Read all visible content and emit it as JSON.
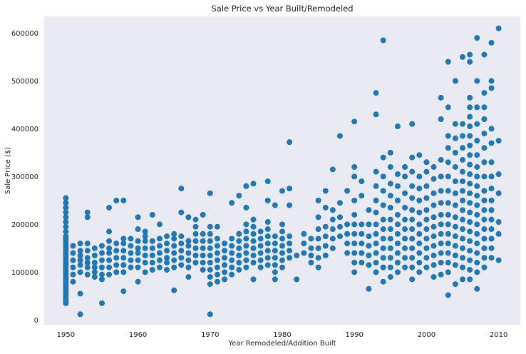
{
  "chart_data": {
    "type": "scatter",
    "title": "Sale Price vs Year Built/Remodeled",
    "xlabel": "Year Remodeled/Addition Built",
    "ylabel": "Sale Price ($)",
    "xlim": [
      1947,
      2013
    ],
    "ylim": [
      -10000,
      635000
    ],
    "xticks": [
      1950,
      1960,
      1970,
      1980,
      1990,
      2000,
      2010
    ],
    "xtick_labels": [
      "1950",
      "1960",
      "1970",
      "1980",
      "1990",
      "2000",
      "2010"
    ],
    "yticks": [
      0,
      100000,
      200000,
      300000,
      400000,
      500000,
      600000
    ],
    "ytick_labels": [
      "0",
      "100000",
      "200000",
      "300000",
      "400000",
      "500000",
      "600000"
    ],
    "grid": false,
    "marker_color": "#1f77b4",
    "background_color": "#eaeaf2",
    "columns": [
      [
        1950,
        [
          35000,
          40000,
          45000,
          50000,
          55000,
          60000,
          65000,
          70000,
          75000,
          80000,
          85000,
          90000,
          95000,
          100000,
          105000,
          110000,
          115000,
          120000,
          125000,
          130000,
          135000,
          140000,
          145000,
          150000,
          155000,
          160000,
          165000,
          170000,
          175000,
          185000,
          195000,
          205000,
          215000,
          225000,
          235000,
          245000,
          255000
        ]
      ],
      [
        1951,
        [
          80000,
          95000,
          110000,
          125000,
          140000,
          155000
        ]
      ],
      [
        1952,
        [
          12000,
          55000,
          100000,
          115000,
          125000,
          135000,
          145000,
          160000
        ]
      ],
      [
        1953,
        [
          95000,
          110000,
          120000,
          130000,
          145000,
          160000,
          215000,
          225000
        ]
      ],
      [
        1954,
        [
          90000,
          100000,
          110000,
          120000,
          135000,
          150000
        ]
      ],
      [
        1955,
        [
          35000,
          85000,
          95000,
          110000,
          125000,
          140000,
          155000
        ]
      ],
      [
        1956,
        [
          95000,
          110000,
          125000,
          140000,
          150000,
          165000,
          185000,
          235000
        ]
      ],
      [
        1957,
        [
          100000,
          115000,
          130000,
          145000,
          160000,
          250000
        ]
      ],
      [
        1958,
        [
          60000,
          100000,
          115000,
          130000,
          145000,
          160000,
          170000,
          250000
        ]
      ],
      [
        1959,
        [
          110000,
          125000,
          140000,
          155000,
          170000
        ]
      ],
      [
        1960,
        [
          80000,
          110000,
          125000,
          140000,
          150000,
          165000,
          190000,
          215000
        ]
      ],
      [
        1961,
        [
          100000,
          120000,
          135000,
          150000,
          165000,
          175000,
          185000
        ]
      ],
      [
        1962,
        [
          105000,
          120000,
          135000,
          150000,
          165000,
          220000
        ]
      ],
      [
        1963,
        [
          110000,
          125000,
          140000,
          155000,
          170000,
          200000
        ]
      ],
      [
        1964,
        [
          105000,
          120000,
          130000,
          145000,
          160000,
          175000
        ]
      ],
      [
        1965,
        [
          62000,
          110000,
          125000,
          140000,
          155000,
          170000,
          180000
        ]
      ],
      [
        1966,
        [
          115000,
          130000,
          145000,
          160000,
          175000,
          225000,
          275000
        ]
      ],
      [
        1967,
        [
          90000,
          110000,
          125000,
          140000,
          155000,
          165000,
          215000
        ]
      ],
      [
        1968,
        [
          120000,
          135000,
          150000,
          165000,
          180000,
          195000,
          210000
        ]
      ],
      [
        1969,
        [
          105000,
          120000,
          135000,
          150000,
          165000,
          180000,
          220000
        ]
      ],
      [
        1970,
        [
          12000,
          75000,
          90000,
          105000,
          120000,
          135000,
          150000,
          165000,
          180000,
          195000,
          265000
        ]
      ],
      [
        1971,
        [
          80000,
          95000,
          110000,
          125000,
          140000,
          155000,
          170000,
          195000
        ]
      ],
      [
        1972,
        [
          85000,
          100000,
          115000,
          130000,
          145000,
          160000
        ]
      ],
      [
        1973,
        [
          95000,
          110000,
          125000,
          140000,
          155000,
          170000,
          245000
        ]
      ],
      [
        1974,
        [
          105000,
          120000,
          135000,
          150000,
          165000,
          180000,
          260000
        ]
      ],
      [
        1975,
        [
          110000,
          125000,
          140000,
          155000,
          170000,
          185000,
          200000,
          235000,
          280000
        ]
      ],
      [
        1976,
        [
          85000,
          120000,
          135000,
          150000,
          165000,
          180000,
          195000,
          210000,
          285000
        ]
      ],
      [
        1977,
        [
          110000,
          125000,
          140000,
          155000,
          170000,
          185000
        ]
      ],
      [
        1978,
        [
          115000,
          130000,
          145000,
          160000,
          175000,
          190000,
          205000,
          250000,
          290000
        ]
      ],
      [
        1979,
        [
          85000,
          100000,
          115000,
          130000,
          145000,
          160000,
          175000,
          240000
        ]
      ],
      [
        1980,
        [
          110000,
          125000,
          140000,
          155000,
          170000,
          185000,
          200000,
          270000
        ]
      ],
      [
        1981,
        [
          130000,
          145000,
          160000,
          175000,
          240000,
          275000,
          372000
        ]
      ],
      [
        1982,
        [
          85000,
          135000
        ]
      ],
      [
        1983,
        [
          140000,
          160000,
          180000
        ]
      ],
      [
        1984,
        [
          120000,
          135000,
          150000,
          170000
        ]
      ],
      [
        1985,
        [
          110000,
          130000,
          150000,
          170000,
          190000,
          215000,
          250000
        ]
      ],
      [
        1986,
        [
          135000,
          155000,
          175000,
          195000,
          235000,
          270000
        ]
      ],
      [
        1987,
        [
          150000,
          170000,
          190000,
          210000,
          230000,
          315000
        ]
      ],
      [
        1988,
        [
          175000,
          195000,
          215000,
          245000,
          385000
        ]
      ],
      [
        1989,
        [
          140000,
          160000,
          180000,
          200000,
          270000
        ]
      ],
      [
        1990,
        [
          100000,
          120000,
          140000,
          160000,
          180000,
          200000,
          220000,
          250000,
          300000,
          320000,
          415000
        ]
      ],
      [
        1991,
        [
          120000,
          140000,
          160000,
          180000,
          200000,
          260000,
          290000
        ]
      ],
      [
        1992,
        [
          65000,
          115000,
          135000,
          155000,
          175000,
          200000,
          230000
        ]
      ],
      [
        1993,
        [
          100000,
          120000,
          140000,
          160000,
          180000,
          200000,
          225000,
          250000,
          280000,
          310000,
          430000,
          475000
        ]
      ],
      [
        1994,
        [
          80000,
          110000,
          130000,
          150000,
          170000,
          190000,
          210000,
          240000,
          270000,
          300000,
          340000,
          585000
        ]
      ],
      [
        1995,
        [
          90000,
          110000,
          130000,
          150000,
          170000,
          190000,
          210000,
          235000,
          260000,
          285000,
          320000,
          350000
        ]
      ],
      [
        1996,
        [
          100000,
          120000,
          140000,
          160000,
          180000,
          200000,
          220000,
          250000,
          280000,
          305000,
          405000
        ]
      ],
      [
        1997,
        [
          110000,
          130000,
          150000,
          170000,
          190000,
          210000,
          235000,
          265000,
          300000,
          320000
        ]
      ],
      [
        1998,
        [
          85000,
          110000,
          130000,
          150000,
          170000,
          190000,
          210000,
          230000,
          255000,
          280000,
          310000,
          340000,
          410000
        ]
      ],
      [
        1999,
        [
          100000,
          120000,
          140000,
          160000,
          180000,
          200000,
          225000,
          250000,
          275000,
          300000,
          345000
        ]
      ],
      [
        2000,
        [
          110000,
          130000,
          150000,
          170000,
          190000,
          210000,
          230000,
          255000,
          280000,
          310000,
          330000
        ]
      ],
      [
        2001,
        [
          90000,
          115000,
          135000,
          155000,
          175000,
          195000,
          215000,
          240000,
          265000,
          295000,
          320000
        ]
      ],
      [
        2002,
        [
          95000,
          120000,
          140000,
          160000,
          180000,
          200000,
          220000,
          245000,
          270000,
          300000,
          335000,
          420000,
          465000
        ]
      ],
      [
        2003,
        [
          52000,
          100000,
          120000,
          140000,
          160000,
          180000,
          200000,
          220000,
          245000,
          270000,
          300000,
          330000,
          360000,
          385000,
          445000,
          540000
        ]
      ],
      [
        2004,
        [
          75000,
          115000,
          135000,
          155000,
          175000,
          195000,
          215000,
          240000,
          265000,
          290000,
          320000,
          350000,
          380000,
          410000,
          500000
        ]
      ],
      [
        2005,
        [
          85000,
          110000,
          130000,
          150000,
          170000,
          190000,
          210000,
          230000,
          250000,
          270000,
          290000,
          310000,
          335000,
          360000,
          385000,
          410000,
          550000
        ]
      ],
      [
        2006,
        [
          85000,
          105000,
          125000,
          145000,
          165000,
          185000,
          205000,
          225000,
          245000,
          265000,
          285000,
          305000,
          325000,
          345000,
          365000,
          385000,
          405000,
          425000,
          445000,
          465000,
          540000,
          555000
        ]
      ],
      [
        2007,
        [
          65000,
          100000,
          120000,
          140000,
          160000,
          180000,
          200000,
          220000,
          240000,
          260000,
          280000,
          300000,
          320000,
          345000,
          375000,
          410000,
          445000,
          500000,
          590000
        ]
      ],
      [
        2008,
        [
          110000,
          130000,
          150000,
          170000,
          190000,
          210000,
          230000,
          250000,
          270000,
          300000,
          330000,
          360000,
          390000,
          420000,
          445000,
          475000,
          555000
        ]
      ],
      [
        2009,
        [
          130000,
          150000,
          170000,
          190000,
          210000,
          230000,
          250000,
          275000,
          300000,
          330000,
          370000,
          400000,
          485000,
          500000,
          580000
        ]
      ],
      [
        2010,
        [
          125000,
          180000,
          205000,
          265000,
          305000,
          375000,
          610000
        ]
      ]
    ]
  }
}
